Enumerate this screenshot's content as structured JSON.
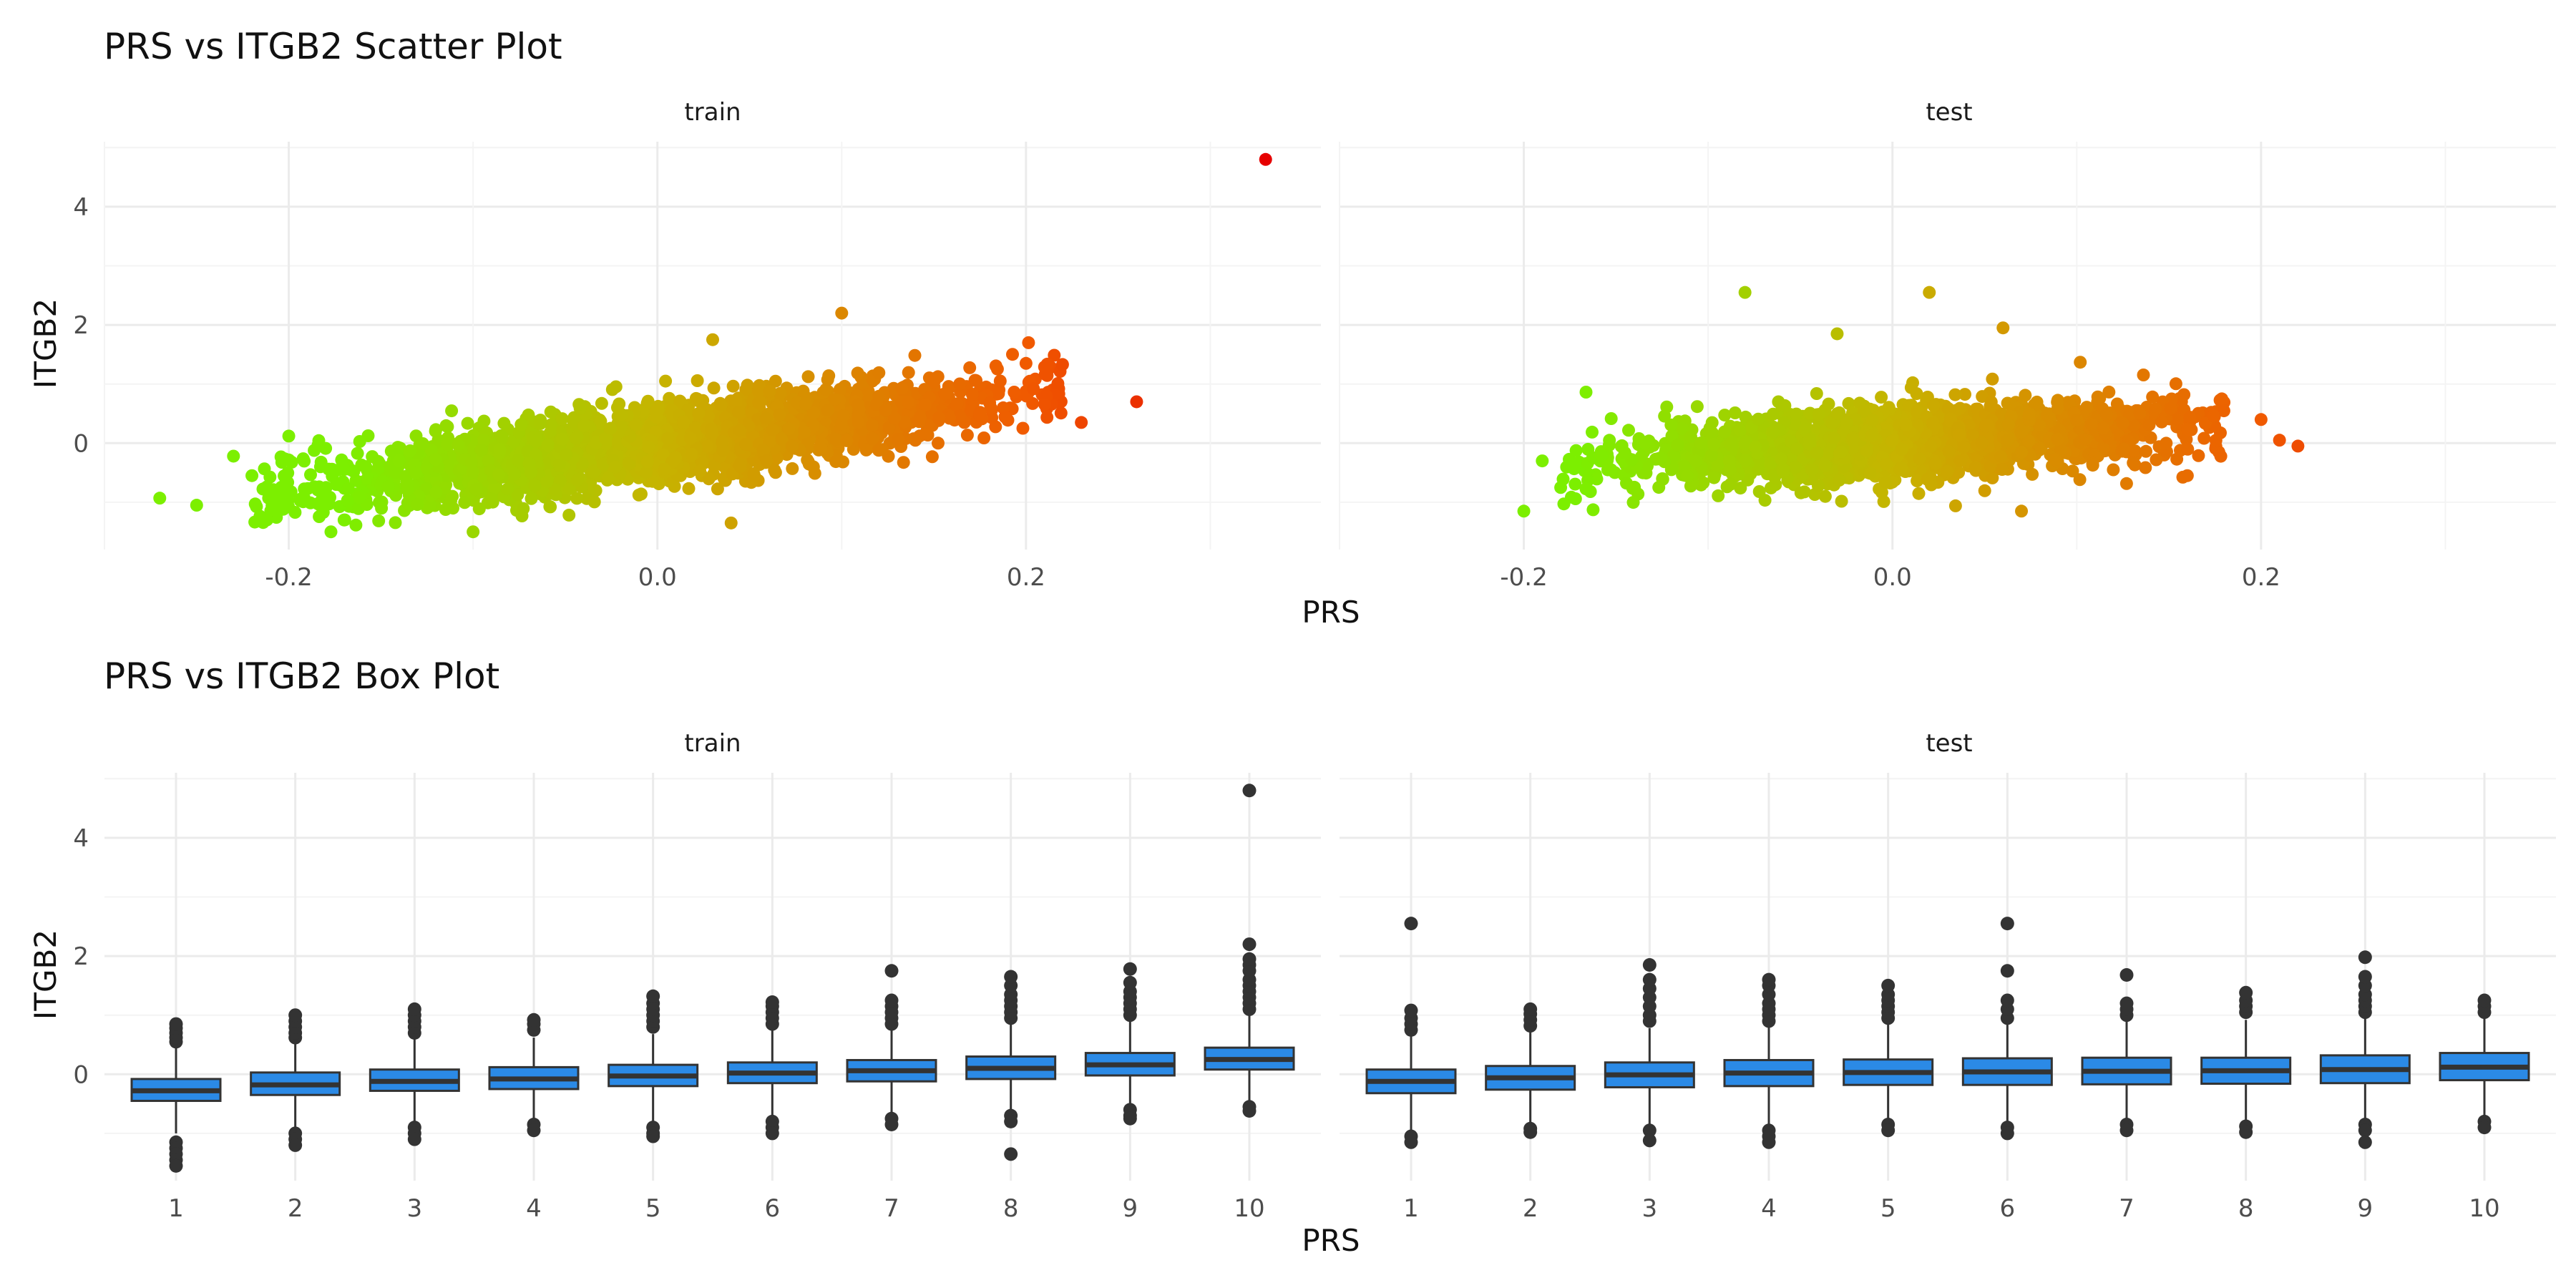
{
  "figure": {
    "scatter_title": "PRS vs ITGB2 Scatter Plot",
    "box_title": "PRS vs ITGB2 Box Plot",
    "xlabel": "PRS",
    "ylabel": "ITGB2",
    "facet_train": "train",
    "facet_test": "test",
    "colors": {
      "grid_major": "#ebebeb",
      "grid_minor": "#f4f4f4",
      "low": "#7cef00",
      "mid": "#c6b400",
      "high": "#f05a00",
      "extreme": "#e60000",
      "box_fill": "#2b8ae6",
      "box_line": "#333333"
    }
  },
  "chart_data": [
    {
      "type": "scatter",
      "title": "PRS vs ITGB2 Scatter Plot",
      "xlabel": "PRS",
      "ylabel": "ITGB2",
      "xlim": [
        -0.3,
        0.36
      ],
      "ylim": [
        -1.8,
        5.1
      ],
      "xticks": [
        -0.2,
        0.0,
        0.2
      ],
      "xtick_labels": [
        "-0.2",
        "0.0",
        "0.2"
      ],
      "yticks": [
        0,
        2,
        4
      ],
      "ytick_labels": [
        "0",
        "2",
        "4"
      ],
      "grid": true,
      "color_by": "PRS (green low to red high)",
      "facets": [
        {
          "name": "train",
          "trend": {
            "slope": 4.0,
            "intercept": 0.0,
            "spread": 0.32,
            "x_range": [
              -0.2,
              0.21
            ],
            "n_points": 2600
          },
          "notable_points": [
            {
              "x": -0.27,
              "y": -0.93
            },
            {
              "x": -0.25,
              "y": -1.05
            },
            {
              "x": -0.23,
              "y": -0.22
            },
            {
              "x": -0.22,
              "y": -0.55
            },
            {
              "x": -0.2,
              "y": 0.12
            },
            {
              "x": -0.17,
              "y": -1.3
            },
            {
              "x": -0.1,
              "y": -1.5
            },
            {
              "x": 0.04,
              "y": -1.35
            },
            {
              "x": 0.03,
              "y": 1.75
            },
            {
              "x": 0.1,
              "y": 2.2
            },
            {
              "x": 0.2,
              "y": 1.35
            },
            {
              "x": 0.23,
              "y": 0.35
            },
            {
              "x": 0.26,
              "y": 0.7
            },
            {
              "x": 0.33,
              "y": 4.8
            }
          ]
        },
        {
          "name": "test",
          "trend": {
            "slope": 2.0,
            "intercept": 0.0,
            "spread": 0.3,
            "x_range": [
              -0.16,
              0.17
            ],
            "n_points": 2000
          },
          "notable_points": [
            {
              "x": -0.2,
              "y": -1.15
            },
            {
              "x": -0.19,
              "y": -0.3
            },
            {
              "x": -0.18,
              "y": -0.75
            },
            {
              "x": -0.08,
              "y": 2.55
            },
            {
              "x": -0.03,
              "y": 1.85
            },
            {
              "x": 0.02,
              "y": 2.55
            },
            {
              "x": 0.06,
              "y": 1.95
            },
            {
              "x": 0.07,
              "y": -1.15
            },
            {
              "x": 0.16,
              "y": -0.55
            },
            {
              "x": 0.2,
              "y": 0.4
            },
            {
              "x": 0.21,
              "y": 0.05
            },
            {
              "x": 0.22,
              "y": -0.05
            }
          ]
        }
      ]
    },
    {
      "type": "box",
      "title": "PRS vs ITGB2 Box Plot",
      "xlabel": "PRS",
      "ylabel": "ITGB2",
      "categories": [
        "1",
        "2",
        "3",
        "4",
        "5",
        "6",
        "7",
        "8",
        "9",
        "10"
      ],
      "ylim": [
        -1.8,
        5.1
      ],
      "yticks": [
        0,
        2,
        4
      ],
      "ytick_labels": [
        "0",
        "2",
        "4"
      ],
      "grid": true,
      "facets": [
        {
          "name": "train",
          "boxes": [
            {
              "q1": -0.45,
              "median": -0.28,
              "q3": -0.08,
              "whisker_low": -1.0,
              "whisker_high": 0.45,
              "outliers": [
                0.55,
                0.62,
                0.7,
                0.78,
                0.85,
                -1.15,
                -1.25,
                -1.35,
                -1.45,
                -1.55
              ]
            },
            {
              "q1": -0.35,
              "median": -0.18,
              "q3": 0.03,
              "whisker_low": -0.9,
              "whisker_high": 0.55,
              "outliers": [
                0.62,
                0.7,
                0.8,
                0.9,
                1.0,
                -1.0,
                -1.1,
                -1.2
              ]
            },
            {
              "q1": -0.28,
              "median": -0.12,
              "q3": 0.08,
              "whisker_low": -0.8,
              "whisker_high": 0.6,
              "outliers": [
                0.7,
                0.8,
                0.9,
                1.0,
                1.1,
                -0.9,
                -1.0,
                -1.1
              ]
            },
            {
              "q1": -0.25,
              "median": -0.08,
              "q3": 0.12,
              "whisker_low": -0.8,
              "whisker_high": 0.62,
              "outliers": [
                0.75,
                0.85,
                0.92,
                -0.85,
                -0.95
              ]
            },
            {
              "q1": -0.2,
              "median": -0.03,
              "q3": 0.16,
              "whisker_low": -0.8,
              "whisker_high": 0.68,
              "outliers": [
                0.8,
                0.9,
                1.0,
                1.1,
                1.2,
                1.32,
                -0.9,
                -1.0,
                -1.05
              ]
            },
            {
              "q1": -0.15,
              "median": 0.02,
              "q3": 0.2,
              "whisker_low": -0.7,
              "whisker_high": 0.75,
              "outliers": [
                0.85,
                0.95,
                1.05,
                1.15,
                1.22,
                -0.8,
                -0.9,
                -1.0
              ]
            },
            {
              "q1": -0.12,
              "median": 0.06,
              "q3": 0.24,
              "whisker_low": -0.65,
              "whisker_high": 0.78,
              "outliers": [
                0.85,
                0.95,
                1.05,
                1.15,
                1.25,
                1.75,
                -0.75,
                -0.85
              ]
            },
            {
              "q1": -0.08,
              "median": 0.1,
              "q3": 0.3,
              "whisker_low": -0.6,
              "whisker_high": 0.85,
              "outliers": [
                0.95,
                1.05,
                1.15,
                1.25,
                1.35,
                1.5,
                1.65,
                -0.7,
                -0.8,
                -1.35
              ]
            },
            {
              "q1": -0.02,
              "median": 0.16,
              "q3": 0.36,
              "whisker_low": -0.5,
              "whisker_high": 0.9,
              "outliers": [
                1.0,
                1.1,
                1.2,
                1.3,
                1.4,
                1.55,
                1.78,
                -0.6,
                -0.7,
                -0.75
              ]
            },
            {
              "q1": 0.08,
              "median": 0.25,
              "q3": 0.45,
              "whisker_low": -0.45,
              "whisker_high": 1.0,
              "outliers": [
                1.1,
                1.2,
                1.3,
                1.4,
                1.5,
                1.6,
                1.75,
                1.85,
                1.95,
                2.2,
                4.8,
                -0.55,
                -0.62
              ]
            }
          ]
        },
        {
          "name": "test",
          "boxes": [
            {
              "q1": -0.32,
              "median": -0.12,
              "q3": 0.08,
              "whisker_low": -0.95,
              "whisker_high": 0.65,
              "outliers": [
                0.75,
                0.85,
                0.95,
                1.08,
                2.55,
                -1.05,
                -1.15
              ]
            },
            {
              "q1": -0.26,
              "median": -0.06,
              "q3": 0.14,
              "whisker_low": -0.85,
              "whisker_high": 0.72,
              "outliers": [
                0.82,
                0.92,
                1.02,
                1.1,
                -0.92,
                -0.98
              ]
            },
            {
              "q1": -0.22,
              "median": -0.01,
              "q3": 0.2,
              "whisker_low": -0.85,
              "whisker_high": 0.78,
              "outliers": [
                0.9,
                1.0,
                1.15,
                1.3,
                1.45,
                1.6,
                1.85,
                -0.95,
                -1.12
              ]
            },
            {
              "q1": -0.2,
              "median": 0.02,
              "q3": 0.24,
              "whisker_low": -0.85,
              "whisker_high": 0.8,
              "outliers": [
                0.9,
                1.0,
                1.1,
                1.2,
                1.35,
                1.5,
                1.6,
                -0.95,
                -1.05,
                -1.15
              ]
            },
            {
              "q1": -0.18,
              "median": 0.03,
              "q3": 0.25,
              "whisker_low": -0.75,
              "whisker_high": 0.85,
              "outliers": [
                0.95,
                1.05,
                1.15,
                1.25,
                1.35,
                1.5,
                -0.85,
                -0.95
              ]
            },
            {
              "q1": -0.18,
              "median": 0.04,
              "q3": 0.27,
              "whisker_low": -0.8,
              "whisker_high": 0.85,
              "outliers": [
                0.95,
                1.1,
                1.25,
                1.75,
                2.55,
                -0.9,
                -1.0
              ]
            },
            {
              "q1": -0.17,
              "median": 0.05,
              "q3": 0.28,
              "whisker_low": -0.75,
              "whisker_high": 0.9,
              "outliers": [
                1.0,
                1.1,
                1.2,
                1.68,
                -0.85,
                -0.95
              ]
            },
            {
              "q1": -0.16,
              "median": 0.06,
              "q3": 0.28,
              "whisker_low": -0.8,
              "whisker_high": 0.92,
              "outliers": [
                1.05,
                1.15,
                1.25,
                1.38,
                -0.88,
                -0.98
              ]
            },
            {
              "q1": -0.15,
              "median": 0.08,
              "q3": 0.32,
              "whisker_low": -0.75,
              "whisker_high": 0.95,
              "outliers": [
                1.05,
                1.15,
                1.25,
                1.35,
                1.5,
                1.65,
                1.98,
                -0.85,
                -0.95,
                -1.15
              ]
            },
            {
              "q1": -0.1,
              "median": 0.12,
              "q3": 0.36,
              "whisker_low": -0.7,
              "whisker_high": 0.95,
              "outliers": [
                1.05,
                1.15,
                1.25,
                -0.8,
                -0.9
              ]
            }
          ]
        }
      ]
    }
  ]
}
